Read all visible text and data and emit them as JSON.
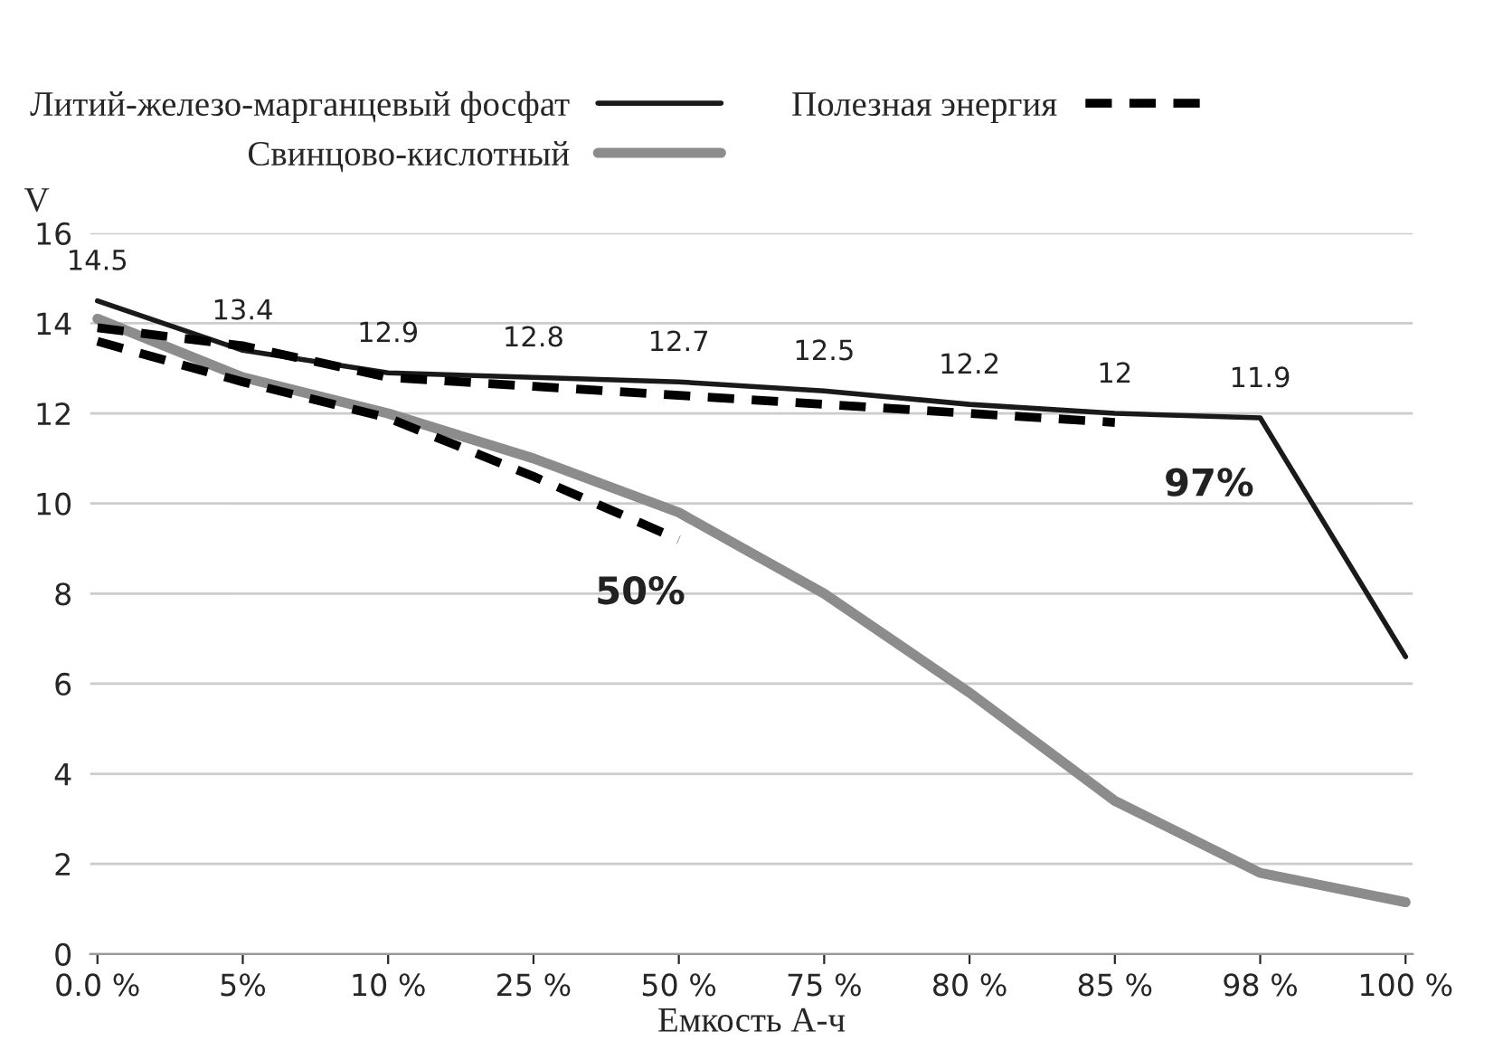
{
  "chart_data": {
    "type": "line",
    "xlabel": "Емкость А-ч",
    "ylabel": "V",
    "categories": [
      "0.0 %",
      "5%",
      "10 %",
      "25 %",
      "50 %",
      "75 %",
      "80 %",
      "85 %",
      "98 %",
      "100 %"
    ],
    "series": [
      {
        "name": "Литий-железо-марганцевый фосфат",
        "color": "#1a1a1a",
        "line_style": "solid",
        "values": [
          14.5,
          13.4,
          12.9,
          12.8,
          12.7,
          12.5,
          12.2,
          12,
          11.9,
          6.6
        ],
        "value_labels": [
          "14.5",
          "13.4",
          "12.9",
          "12.8",
          "12.7",
          "12.5",
          "12.2",
          "12",
          "11.9",
          null
        ]
      },
      {
        "name": "Свинцово-кислотный",
        "color": "#8c8c8c",
        "line_style": "solid",
        "values": [
          14.1,
          12.8,
          12.0,
          11.0,
          9.8,
          8.0,
          5.8,
          3.4,
          1.8,
          1.15
        ]
      },
      {
        "name": "Полезная энергия",
        "color": "#000000",
        "line_style": "dashed",
        "values": [
          13.9,
          13.5,
          12.8,
          12.6,
          12.4,
          12.2,
          12.0,
          11.8,
          null,
          null
        ]
      },
      {
        "color": "#000000",
        "line_style": "dashed",
        "values": [
          13.6,
          12.7,
          11.9,
          10.6,
          9.2,
          null,
          null,
          null,
          null,
          null
        ]
      }
    ],
    "ylim": [
      0,
      16
    ],
    "yticks": [
      0,
      2,
      4,
      6,
      8,
      10,
      12,
      14,
      16
    ],
    "grid": "y",
    "legend": "top",
    "annotations": [
      "50%",
      "97%"
    ]
  }
}
